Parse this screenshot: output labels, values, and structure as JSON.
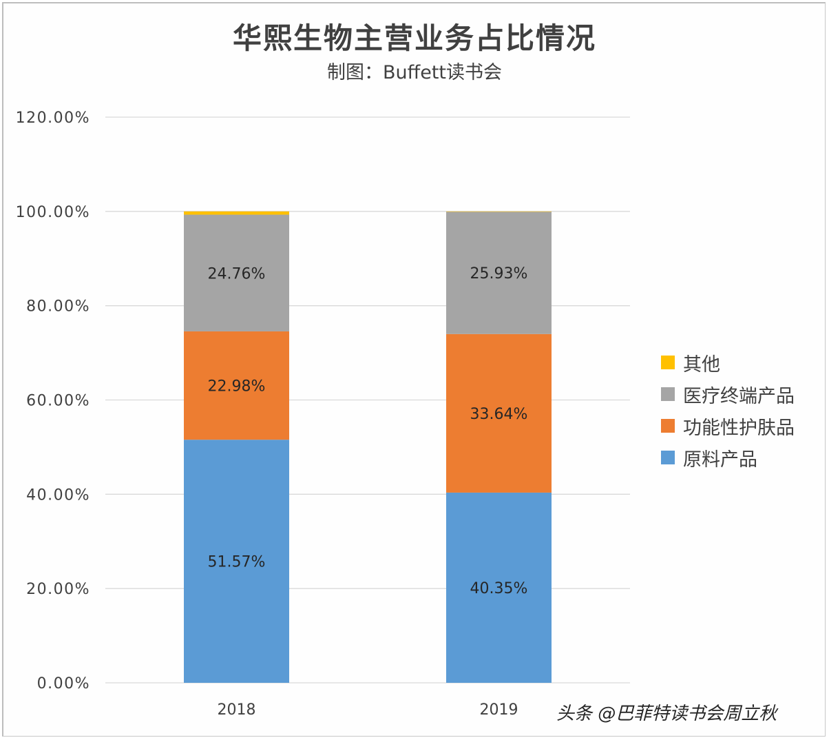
{
  "chart_data": {
    "type": "bar",
    "stacked": true,
    "title": "华熙生物主营业务占比情况",
    "subtitle": "制图：Buffett读书会",
    "xlabel": "",
    "ylabel": "",
    "categories": [
      "2018",
      "2019"
    ],
    "ylim": [
      0,
      120
    ],
    "yticks": [
      "0.00%",
      "20.00%",
      "40.00%",
      "60.00%",
      "80.00%",
      "100.00%",
      "120.00%"
    ],
    "grid": true,
    "legend_position": "right",
    "series": [
      {
        "name": "原料产品",
        "color": "#5b9bd5",
        "values": [
          51.57,
          40.35
        ],
        "labels": [
          "51.57%",
          "40.35%"
        ]
      },
      {
        "name": "功能性护肤品",
        "color": "#ed7d31",
        "values": [
          22.98,
          33.64
        ],
        "labels": [
          "22.98%",
          "33.64%"
        ]
      },
      {
        "name": "医疗终端产品",
        "color": "#a5a5a5",
        "values": [
          24.76,
          25.93
        ],
        "labels": [
          "24.76%",
          "25.93%"
        ]
      },
      {
        "name": "其他",
        "color": "#ffc000",
        "values": [
          0.69,
          0.08
        ],
        "labels": [
          "",
          ""
        ]
      }
    ]
  },
  "legend": [
    {
      "name": "其他",
      "color": "#ffc000"
    },
    {
      "name": "医疗终端产品",
      "color": "#a5a5a5"
    },
    {
      "name": "功能性护肤品",
      "color": "#ed7d31"
    },
    {
      "name": "原料产品",
      "color": "#5b9bd5"
    }
  ],
  "watermark": "头条 @巴菲特读书会周立秋"
}
